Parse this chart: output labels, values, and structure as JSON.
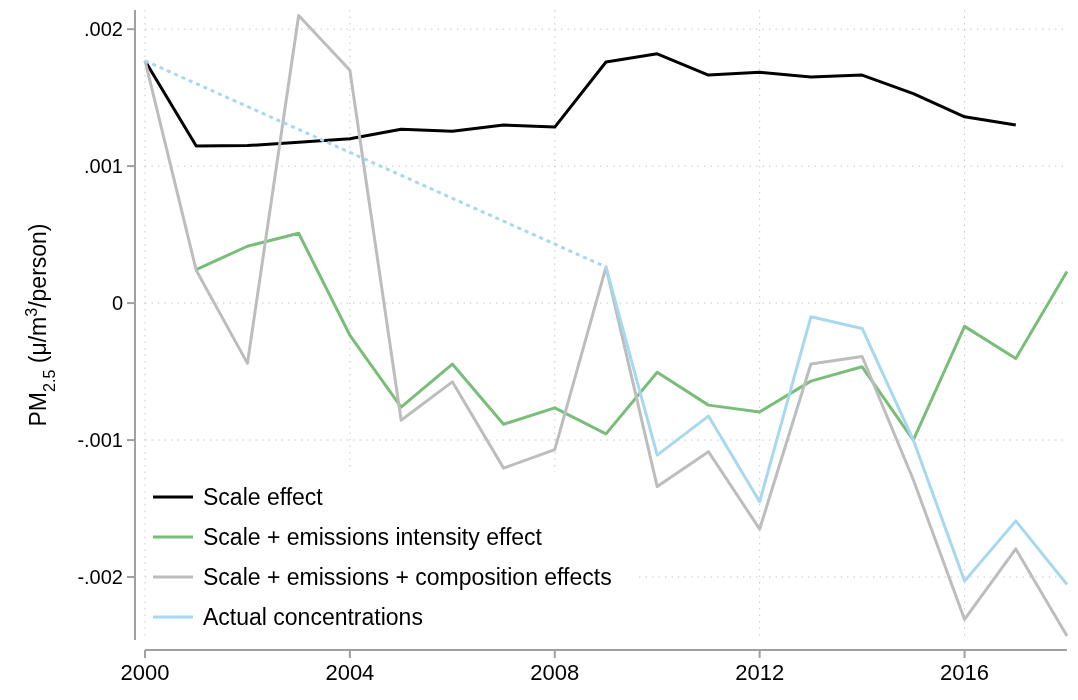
{
  "chart_data": {
    "type": "line",
    "ylabel": "PM$_{2.5}$ (μ/m$^{3}$/person)",
    "x": [
      2000,
      2001,
      2002,
      2003,
      2004,
      2005,
      2006,
      2007,
      2008,
      2009,
      2010,
      2011,
      2012,
      2013,
      2014,
      2015,
      2016,
      2017,
      2018
    ],
    "xlim": [
      2000,
      2018
    ],
    "xticks": [
      2000,
      2004,
      2008,
      2012,
      2016
    ],
    "ylim": [
      -0.00246,
      0.00214
    ],
    "yticks": [
      {
        "value": -0.002,
        "label": "-.002"
      },
      {
        "value": -0.001,
        "label": "-.001"
      },
      0,
      {
        "value": 0.001,
        "label": ".001"
      },
      {
        "value": 0.002,
        "label": ".002"
      }
    ],
    "grid": true,
    "legend": "bottom left",
    "line_style": "solid",
    "marker": "none",
    "series": [
      {
        "name": "Scale effect",
        "color": "#000000",
        "values": [
          0.00177,
          0.001147,
          0.00115,
          0.001175,
          0.0012,
          0.00127,
          0.001255,
          0.0013,
          0.001285,
          0.00176,
          0.00182,
          0.001665,
          0.001685,
          0.00165,
          0.001665,
          0.00153,
          0.00136,
          0.0013,
          null
        ]
      },
      {
        "name": "Scale + emissions intensity effect",
        "color": "#78be78",
        "values": [
          null,
          0.000245,
          0.000415,
          0.00051,
          -0.000235,
          -0.00076,
          -0.000445,
          -0.000885,
          -0.000765,
          -0.000955,
          -0.000505,
          -0.000745,
          -0.000795,
          -0.00057,
          -0.000465,
          -0.001,
          -0.00017,
          -0.000405,
          0.00023
        ]
      },
      {
        "name": "Scale + emissions + composition effects",
        "color": "#bdbdbd",
        "values": [
          0.00177,
          0.00024,
          -0.00044,
          0.0021,
          0.0017,
          -0.000855,
          -0.000575,
          -0.001205,
          -0.00107,
          0.000263,
          -0.00134,
          -0.001085,
          -0.00165,
          -0.000445,
          -0.00039,
          -0.00129,
          -0.00231,
          -0.001795,
          -0.00243
        ]
      },
      {
        "name": "Actual concentrations",
        "color": "#a6d8f0",
        "values": [
          null,
          null,
          null,
          null,
          null,
          null,
          null,
          null,
          null,
          0.000263,
          -0.00111,
          -0.000825,
          -0.00145,
          -0.0001,
          -0.000185,
          -0.001,
          -0.00203,
          -0.00159,
          -0.002055
        ]
      },
      {
        "color": "#a6d8f0",
        "line_style": "dotted",
        "x": [
          2000,
          2009
        ],
        "values": [
          0.00177,
          0.000263
        ]
      }
    ]
  }
}
